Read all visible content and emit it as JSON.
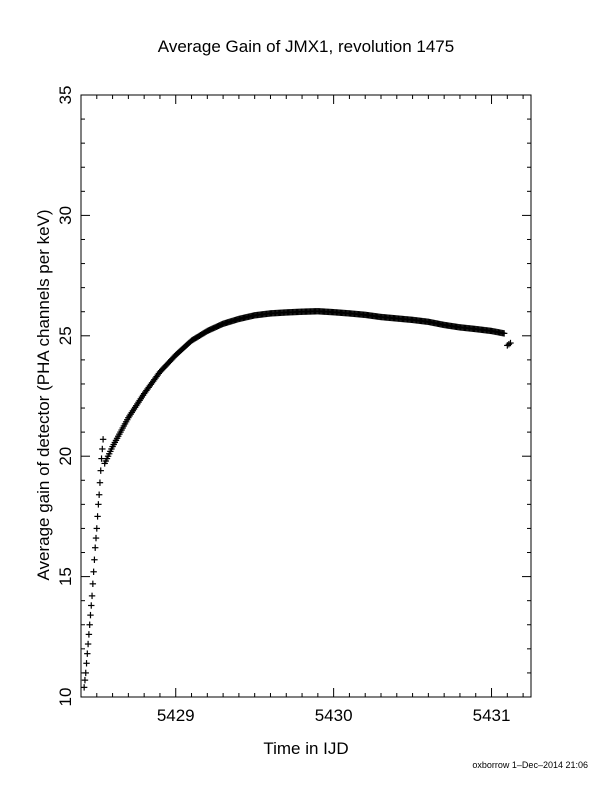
{
  "chart_data": {
    "type": "scatter",
    "title": "Average Gain of JMX1, revolution 1475",
    "xlabel": "Time in IJD",
    "ylabel": "Average gain of detector (PHA channels per keV)",
    "xlim": [
      5428.4,
      5431.25
    ],
    "ylim": [
      10,
      35
    ],
    "xticks": [
      5429,
      5430,
      5431
    ],
    "yticks": [
      10,
      15,
      20,
      25,
      30,
      35
    ],
    "marker": "plus",
    "color": "#000000",
    "series": [
      {
        "values_x": [
          5428.42,
          5428.425,
          5428.43,
          5428.435,
          5428.44,
          5428.445,
          5428.45,
          5428.455,
          5428.46,
          5428.465,
          5428.47,
          5428.475,
          5428.48,
          5428.485,
          5428.49,
          5428.495,
          5428.5,
          5428.505,
          5428.51,
          5428.515,
          5428.52,
          5428.525,
          5428.53,
          5428.535,
          5428.54
        ],
        "values_y": [
          10.4,
          10.7,
          11.0,
          11.4,
          11.8,
          12.2,
          12.6,
          13.0,
          13.4,
          13.8,
          14.2,
          14.7,
          15.2,
          15.7,
          16.2,
          16.6,
          17.0,
          17.5,
          18.0,
          18.4,
          18.9,
          19.4,
          19.9,
          20.3,
          20.7
        ]
      },
      {
        "values_x": [
          5428.55,
          5428.6,
          5428.7,
          5428.8,
          5428.9,
          5429.0,
          5429.1,
          5429.2,
          5429.3,
          5429.4,
          5429.5,
          5429.6,
          5429.7,
          5429.8,
          5429.9,
          5430.0,
          5430.1,
          5430.2,
          5430.3,
          5430.4,
          5430.5,
          5430.6,
          5430.7,
          5430.8,
          5430.9,
          5431.0,
          5431.08
        ],
        "values_y": [
          19.7,
          20.4,
          21.6,
          22.6,
          23.5,
          24.2,
          24.8,
          25.2,
          25.5,
          25.7,
          25.85,
          25.93,
          25.97,
          26.0,
          26.02,
          25.98,
          25.93,
          25.87,
          25.78,
          25.72,
          25.66,
          25.58,
          25.45,
          25.35,
          25.28,
          25.2,
          25.1
        ]
      },
      {
        "values_x": [
          5431.1,
          5431.11,
          5431.12
        ],
        "values_y": [
          24.6,
          24.65,
          24.7
        ]
      }
    ]
  },
  "footer": "oxborrow 1–Dec–2014 21:06"
}
